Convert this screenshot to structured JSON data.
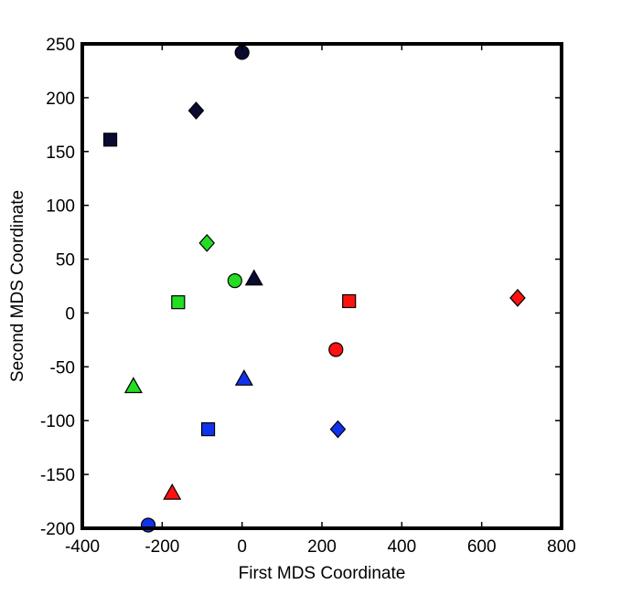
{
  "chart_data": {
    "type": "scatter",
    "title": "",
    "xlabel": "First MDS Coordinate",
    "ylabel": "Second MDS Coordinate",
    "xlim": [
      -400,
      800
    ],
    "ylim": [
      -200,
      250
    ],
    "xticks": [
      -400,
      -200,
      0,
      200,
      400,
      600,
      800
    ],
    "yticks": [
      -200,
      -150,
      -100,
      -50,
      0,
      50,
      100,
      150,
      200,
      250
    ],
    "grid": false,
    "legend": "none",
    "colors": {
      "navy": "#0a0a33",
      "green": "#22dd22",
      "red": "#ff1111",
      "blue": "#1133ee",
      "edge": "#000000"
    },
    "points": [
      {
        "x": 0,
        "y": 242,
        "marker": "circle",
        "color": "navy"
      },
      {
        "x": -115,
        "y": 188,
        "marker": "diamond",
        "color": "navy"
      },
      {
        "x": -330,
        "y": 161,
        "marker": "square",
        "color": "navy"
      },
      {
        "x": 30,
        "y": 32,
        "marker": "triangle",
        "color": "navy"
      },
      {
        "x": -88,
        "y": 65,
        "marker": "diamond",
        "color": "green"
      },
      {
        "x": -18,
        "y": 30,
        "marker": "circle",
        "color": "green"
      },
      {
        "x": -160,
        "y": 10,
        "marker": "square",
        "color": "green"
      },
      {
        "x": -272,
        "y": -68,
        "marker": "triangle",
        "color": "green"
      },
      {
        "x": 268,
        "y": 11,
        "marker": "square",
        "color": "red"
      },
      {
        "x": 235,
        "y": -34,
        "marker": "circle",
        "color": "red"
      },
      {
        "x": 690,
        "y": 14,
        "marker": "diamond",
        "color": "red"
      },
      {
        "x": -175,
        "y": -167,
        "marker": "triangle",
        "color": "red"
      },
      {
        "x": 5,
        "y": -61,
        "marker": "triangle",
        "color": "blue"
      },
      {
        "x": -85,
        "y": -108,
        "marker": "square",
        "color": "blue"
      },
      {
        "x": 240,
        "y": -108,
        "marker": "diamond",
        "color": "blue"
      },
      {
        "x": -235,
        "y": -197,
        "marker": "circle",
        "color": "blue"
      }
    ]
  }
}
